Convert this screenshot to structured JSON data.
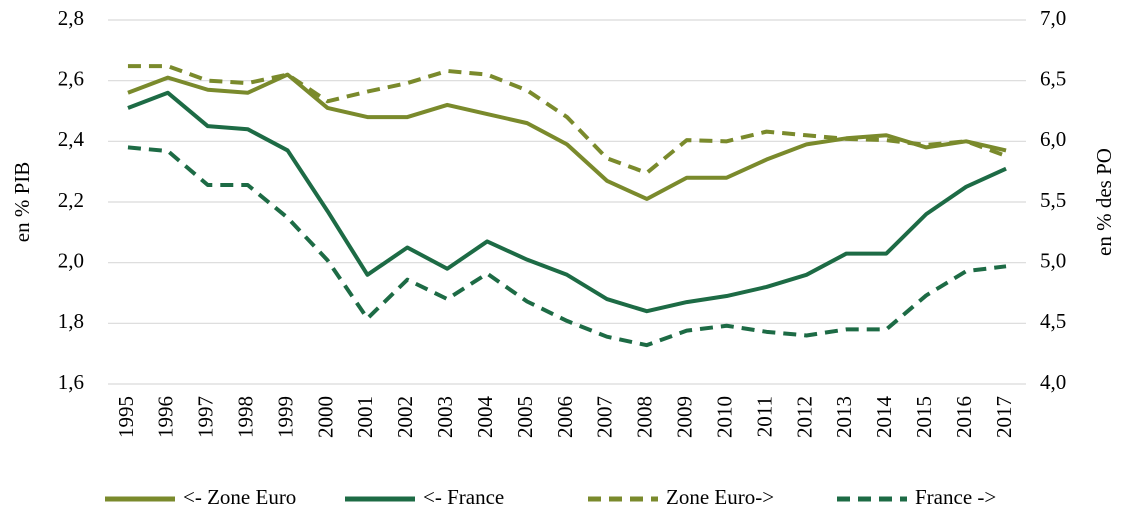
{
  "chart_data": {
    "type": "line",
    "categories": [
      "1995",
      "1996",
      "1997",
      "1998",
      "1999",
      "2000",
      "2001",
      "2002",
      "2003",
      "2004",
      "2005",
      "2006",
      "2007",
      "2008",
      "2009",
      "2010",
      "2011",
      "2012",
      "2013",
      "2014",
      "2015",
      "2016",
      "2017"
    ],
    "ylabel": "en % PIB",
    "y2label": "en % des PO",
    "ylim": [
      1.6,
      2.8
    ],
    "yticks": [
      {
        "value": 1.6,
        "label": "1,6"
      },
      {
        "value": 1.8,
        "label": "1,8"
      },
      {
        "value": 2.0,
        "label": "2,0"
      },
      {
        "value": 2.2,
        "label": "2,2"
      },
      {
        "value": 2.4,
        "label": "2,4"
      },
      {
        "value": 2.6,
        "label": "2,6"
      },
      {
        "value": 2.8,
        "label": "2,8"
      }
    ],
    "y2lim": [
      4.0,
      7.0
    ],
    "y2ticks": [
      {
        "value": 4.0,
        "label": "4,0"
      },
      {
        "value": 4.5,
        "label": "4,5"
      },
      {
        "value": 5.0,
        "label": "5,0"
      },
      {
        "value": 5.5,
        "label": "5,5"
      },
      {
        "value": 6.0,
        "label": "6,0"
      },
      {
        "value": 6.5,
        "label": "6,5"
      },
      {
        "value": 7.0,
        "label": "7,0"
      }
    ],
    "grid": true,
    "legend": "bottom",
    "series": [
      {
        "name": "<- Zone Euro",
        "color": "#7a8a2c",
        "axis": "y",
        "values": [
          2.56,
          2.61,
          2.57,
          2.56,
          2.62,
          2.51,
          2.48,
          2.48,
          2.52,
          2.49,
          2.46,
          2.39,
          2.27,
          2.21,
          2.28,
          2.28,
          2.34,
          2.39,
          2.41,
          2.42,
          2.38,
          2.4,
          2.37
        ]
      },
      {
        "name": "<- France",
        "color": "#1d6b45",
        "axis": "y",
        "values": [
          2.51,
          2.56,
          2.45,
          2.44,
          2.37,
          2.17,
          1.96,
          2.05,
          1.98,
          2.07,
          2.01,
          1.96,
          1.88,
          1.84,
          1.87,
          1.89,
          1.92,
          1.96,
          2.03,
          2.03,
          2.16,
          2.25,
          2.31
        ]
      },
      {
        "name": "Zone Euro->",
        "color": "#7a8a2c",
        "axis": "y2",
        "values": [
          6.62,
          6.62,
          6.5,
          6.48,
          6.55,
          6.33,
          6.41,
          6.48,
          6.58,
          6.55,
          6.42,
          6.2,
          5.86,
          5.74,
          6.01,
          6.0,
          6.08,
          6.05,
          6.02,
          6.01,
          5.97,
          6.0,
          5.88
        ]
      },
      {
        "name": "France ->",
        "color": "#1d6b45",
        "axis": "y2",
        "values": [
          5.95,
          5.92,
          5.64,
          5.64,
          5.37,
          5.02,
          4.54,
          4.86,
          4.7,
          4.91,
          4.68,
          4.52,
          4.39,
          4.32,
          4.44,
          4.48,
          4.43,
          4.4,
          4.45,
          4.45,
          4.73,
          4.93,
          4.97
        ]
      }
    ]
  }
}
